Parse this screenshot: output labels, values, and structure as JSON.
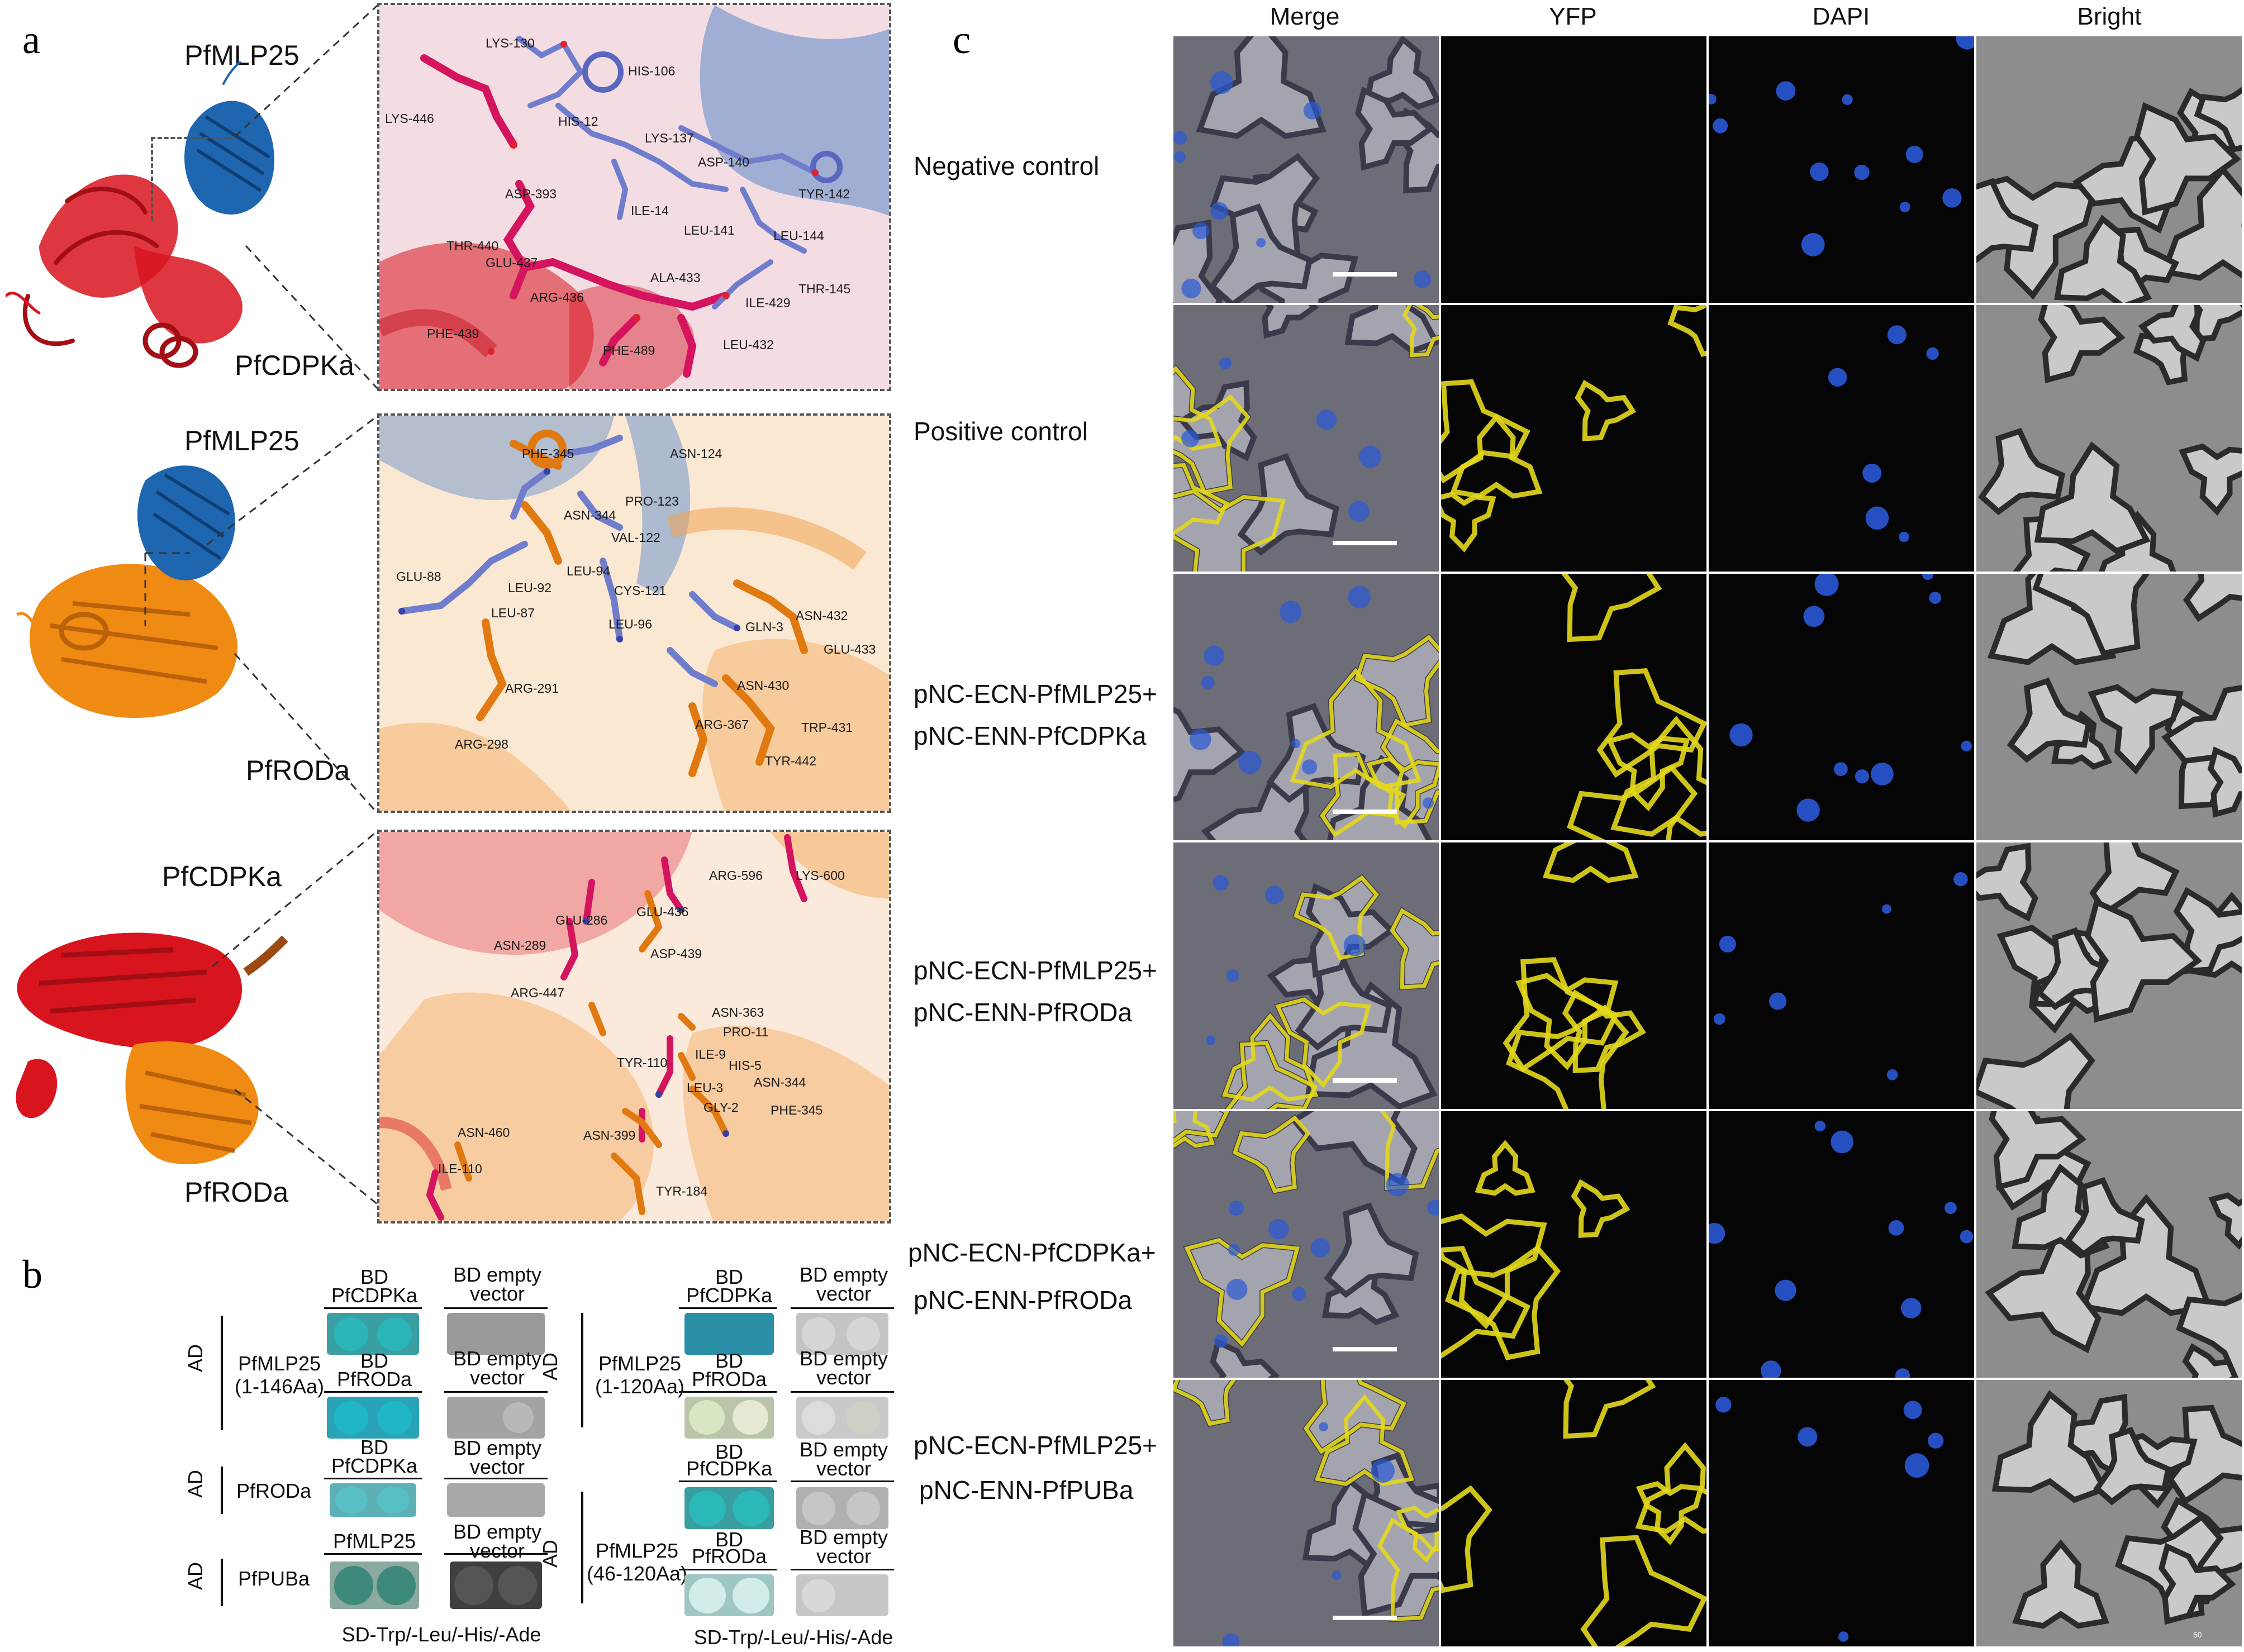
{
  "panels": {
    "a": "a",
    "b": "b",
    "c": "c"
  },
  "panel_a": {
    "complexes": [
      {
        "top_label": "PfMLP25",
        "bottom_label": "PfCDPKa",
        "residues": [
          "LYS-130",
          "HIS-106",
          "LYS-446",
          "HIS-12",
          "LYS-137",
          "ASP-140",
          "TYR-142",
          "ASP-393",
          "ILE-14",
          "LEU-141",
          "LEU-144",
          "THR-440",
          "GLU-437",
          "ALA-433",
          "THR-145",
          "ARG-436",
          "ILE-429",
          "PHE-439",
          "PHE-489",
          "LEU-432"
        ]
      },
      {
        "top_label": "PfMLP25",
        "bottom_label": "PfRODa",
        "residues": [
          "PHE-345",
          "ASN-124",
          "PRO-123",
          "ASN-344",
          "VAL-122",
          "LEU-94",
          "GLU-88",
          "LEU-92",
          "CYS-121",
          "LEU-87",
          "ASN-432",
          "LEU-96",
          "GLN-3",
          "GLU-433",
          "ASN-430",
          "ARG-291",
          "ARG-367",
          "TRP-431",
          "ARG-298",
          "TYR-442"
        ]
      },
      {
        "top_label": "PfCDPKa",
        "bottom_label": "PfRODa",
        "residues": [
          "ARG-596",
          "LYS-600",
          "GLU-286",
          "GLU-436",
          "ASN-289",
          "ASP-439",
          "ARG-447",
          "ASN-363",
          "PRO-11",
          "TYR-110",
          "ILE-9",
          "HIS-5",
          "ASN-344",
          "LEU-3",
          "GLY-2",
          "PHE-345",
          "ASN-460",
          "ASN-399",
          "ILE-110",
          "TYR-184"
        ]
      }
    ]
  },
  "panel_b": {
    "ad_label": "AD",
    "left": [
      {
        "ad": "PfMLP25\n(1-146Aa)",
        "rows": [
          {
            "bd": "PfCDPKa",
            "bd_prefix": "BD",
            "ctrl": "BD empty\nvector"
          },
          {
            "bd": "PfRODa",
            "bd_prefix": "BD",
            "ctrl": "BD empty\nvector"
          }
        ]
      },
      {
        "ad": "PfRODa",
        "rows": [
          {
            "bd": "PfCDPKa",
            "bd_prefix": "BD",
            "ctrl": "BD empty\nvector"
          }
        ]
      },
      {
        "ad": "PfPUBa",
        "rows": [
          {
            "bd": "PfMLP25",
            "bd_prefix": "",
            "ctrl": "BD empty\nvector"
          }
        ]
      }
    ],
    "right": [
      {
        "ad": "PfMLP25\n(1-120Aa)",
        "rows": [
          {
            "bd": "PfCDPKa",
            "bd_prefix": "BD",
            "ctrl": "BD empty\nvector"
          },
          {
            "bd": "PfRODa",
            "bd_prefix": "BD",
            "ctrl": "BD empty\nvector"
          }
        ]
      },
      {
        "ad": "PfMLP25\n(46-120Aa)",
        "rows": [
          {
            "bd": "PfCDPKa",
            "bd_prefix": "BD",
            "ctrl": "BD empty\nvector"
          },
          {
            "bd": "PfRODa",
            "bd_prefix": "BD",
            "ctrl": "BD empty\nvector"
          }
        ]
      }
    ],
    "medium_left": "SD-Trp/-Leu/-His/-Ade",
    "medium_right": "SD-Trp/-Leu/-His/-Ade"
  },
  "panel_c": {
    "columns": [
      "Merge",
      "YFP",
      "DAPI",
      "Bright"
    ],
    "rows": [
      {
        "label_line1": "Negative control",
        "label_line2": ""
      },
      {
        "label_line1": "Positive control",
        "label_line2": ""
      },
      {
        "label_line1": "pNC-ECN-PfMLP25+",
        "label_line2": "pNC-ENN-PfCDPKa"
      },
      {
        "label_line1": "pNC-ECN-PfMLP25+",
        "label_line2": "pNC-ENN-PfRODa"
      },
      {
        "label_line1": "pNC-ECN-PfCDPKa+",
        "label_line2": "pNC-ENN-PfRODa"
      },
      {
        "label_line1": "pNC-ECN-PfMLP25+",
        "label_line2": "pNC-ENN-PfPUBa"
      }
    ],
    "scale_label": "50"
  },
  "colors": {
    "cdpk": "#d8141f",
    "mlp": "#1f66b0",
    "rod": "#ef8a12",
    "yfp": "#e3d81c",
    "dapi": "#2a58d6"
  }
}
